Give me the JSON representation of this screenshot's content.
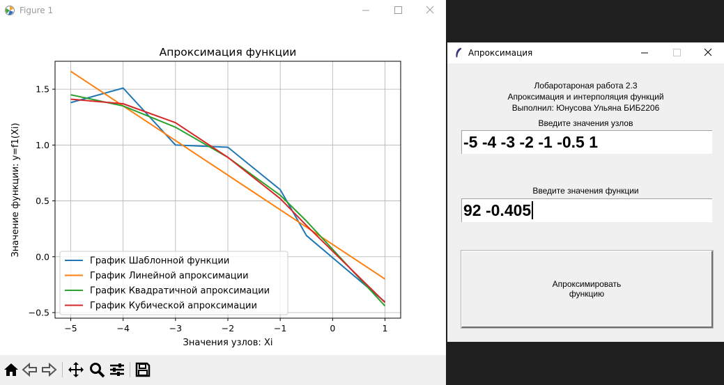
{
  "figure_window": {
    "title": "Figure 1",
    "toolbar": [
      {
        "name": "home-icon"
      },
      {
        "name": "back-arrow-icon"
      },
      {
        "name": "forward-arrow-icon"
      },
      {
        "name": "pan-icon"
      },
      {
        "name": "zoom-icon"
      },
      {
        "name": "configure-subplots-icon"
      },
      {
        "name": "save-icon"
      }
    ]
  },
  "chart_data": {
    "type": "line",
    "title": "Апроксимация функции",
    "xlabel": "Значения узлов: Xi",
    "ylabel": "Значение функции: y=f1(Xi)",
    "xlim": [
      -5.3,
      1.3
    ],
    "ylim": [
      -0.55,
      1.75
    ],
    "xticks": [
      -5,
      -4,
      -3,
      -2,
      -1,
      0,
      1
    ],
    "xtick_labels": [
      "−5",
      "−4",
      "−3",
      "−2",
      "−1",
      "0",
      "1"
    ],
    "yticks": [
      -0.5,
      0.0,
      0.5,
      1.0,
      1.5
    ],
    "ytick_labels": [
      "−0.5",
      "0.0",
      "0.5",
      "1.0",
      "1.5"
    ],
    "grid": true,
    "legend_position": "lower-left",
    "series": [
      {
        "name": "График Шаблонной функции",
        "color": "#1f77b4",
        "x": [
          -5,
          -4,
          -3,
          -2,
          -1,
          -0.5,
          1
        ],
        "y": [
          1.38,
          1.51,
          1.0,
          0.98,
          0.6,
          0.19,
          -0.405
        ]
      },
      {
        "name": "График Линейной апроксимации",
        "color": "#ff7f0e",
        "x": [
          -5,
          1
        ],
        "y": [
          1.66,
          -0.2
        ]
      },
      {
        "name": "График Квадратичной апроксимации",
        "color": "#2ca02c",
        "x": [
          -5,
          -4,
          -3,
          -2,
          -1,
          -0.5,
          1
        ],
        "y": [
          1.45,
          1.35,
          1.16,
          0.89,
          0.55,
          0.32,
          -0.44
        ]
      },
      {
        "name": "График Кубической апроксимации",
        "color": "#d62728",
        "x": [
          -5,
          -4,
          -3,
          -2,
          -1,
          -0.5,
          1
        ],
        "y": [
          1.41,
          1.37,
          1.2,
          0.89,
          0.52,
          0.28,
          -0.41
        ]
      }
    ]
  },
  "tk_window": {
    "title": "Апроксимация",
    "info_line1": "Лобаротароная работа 2.3",
    "info_line2": "Апроксимация и интерполяция функций",
    "info_line3": "Выполнил: Юнусова Ульяна БИБ2206",
    "nodes_label": "Введите значения узлов",
    "nodes_value": "-5 -4 -3 -2 -1 -0.5 1",
    "func_label": "Введите значения функции",
    "func_value": "92 -0.405",
    "button_line1": "Апроксимировать",
    "button_line2": "функцию"
  }
}
